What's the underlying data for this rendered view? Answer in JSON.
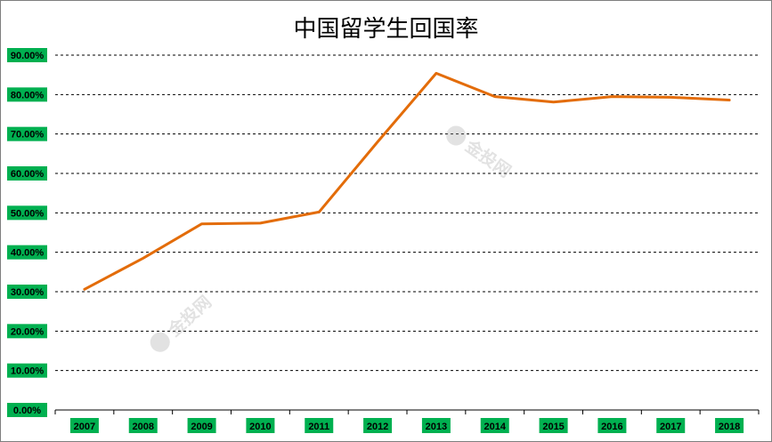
{
  "chart_data": {
    "type": "line",
    "title": "中国留学生回国率",
    "xlabel": "",
    "ylabel": "",
    "categories": [
      "2007",
      "2008",
      "2009",
      "2010",
      "2011",
      "2012",
      "2013",
      "2014",
      "2015",
      "2016",
      "2017",
      "2018"
    ],
    "series": [
      {
        "values": [
          30.6,
          38.5,
          47.2,
          47.4,
          50.2,
          68.0,
          85.4,
          79.5,
          78.1,
          79.5,
          79.3,
          78.6
        ]
      }
    ],
    "ylim": [
      0,
      90
    ],
    "yticks": [
      "0.00%",
      "10.00%",
      "20.00%",
      "30.00%",
      "40.00%",
      "50.00%",
      "60.00%",
      "70.00%",
      "80.00%",
      "90.00%"
    ],
    "grid": true,
    "legend": "none",
    "colors": {
      "line": "#e36c09",
      "label_bg": "#00b050",
      "grid": "#000000"
    },
    "watermark": "金投网"
  }
}
